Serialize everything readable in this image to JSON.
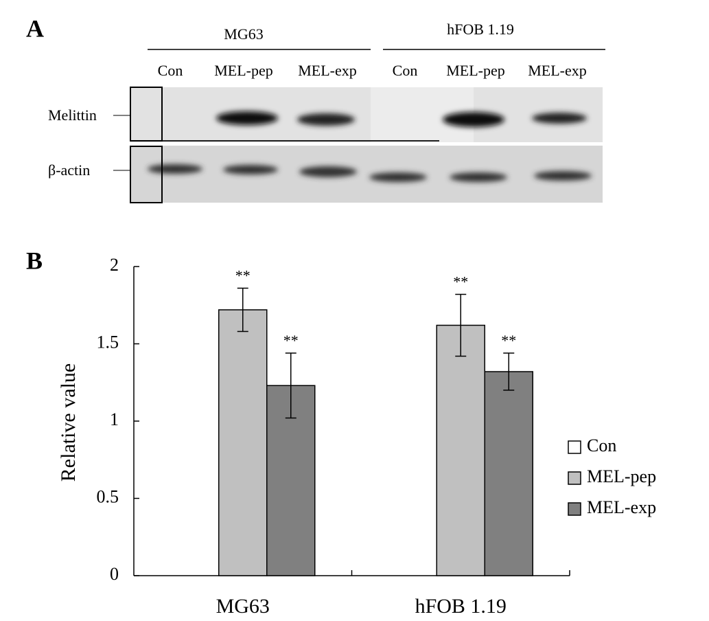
{
  "panel_a": {
    "label": "A",
    "groups": [
      {
        "name": "MG63",
        "lanes": [
          "Con",
          "MEL-pep",
          "MEL-exp"
        ]
      },
      {
        "name": "hFOB 1.19",
        "lanes": [
          "Con",
          "MEL-pep",
          "MEL-exp"
        ]
      }
    ],
    "rows": [
      "Melittin",
      "β-actin"
    ]
  },
  "chart_data": {
    "type": "bar",
    "panel_label": "B",
    "ylabel": "Relative value",
    "categories": [
      "MG63",
      "hFOB 1.19"
    ],
    "series": [
      {
        "name": "Con",
        "color": "#ffffff",
        "values": [
          null,
          null
        ],
        "errors": [
          null,
          null
        ],
        "markers": [
          null,
          null
        ]
      },
      {
        "name": "MEL-pep",
        "color": "#c0c0c0",
        "values": [
          1.72,
          1.62
        ],
        "errors": [
          0.14,
          0.2
        ],
        "markers": [
          "**",
          "**"
        ]
      },
      {
        "name": "MEL-exp",
        "color": "#808080",
        "values": [
          1.23,
          1.32
        ],
        "errors": [
          0.21,
          0.12
        ],
        "markers": [
          "**",
          "**"
        ]
      }
    ],
    "ylim": [
      0,
      2
    ],
    "yticks": [
      0,
      0.5,
      1,
      1.5,
      2
    ],
    "legend": "right"
  }
}
